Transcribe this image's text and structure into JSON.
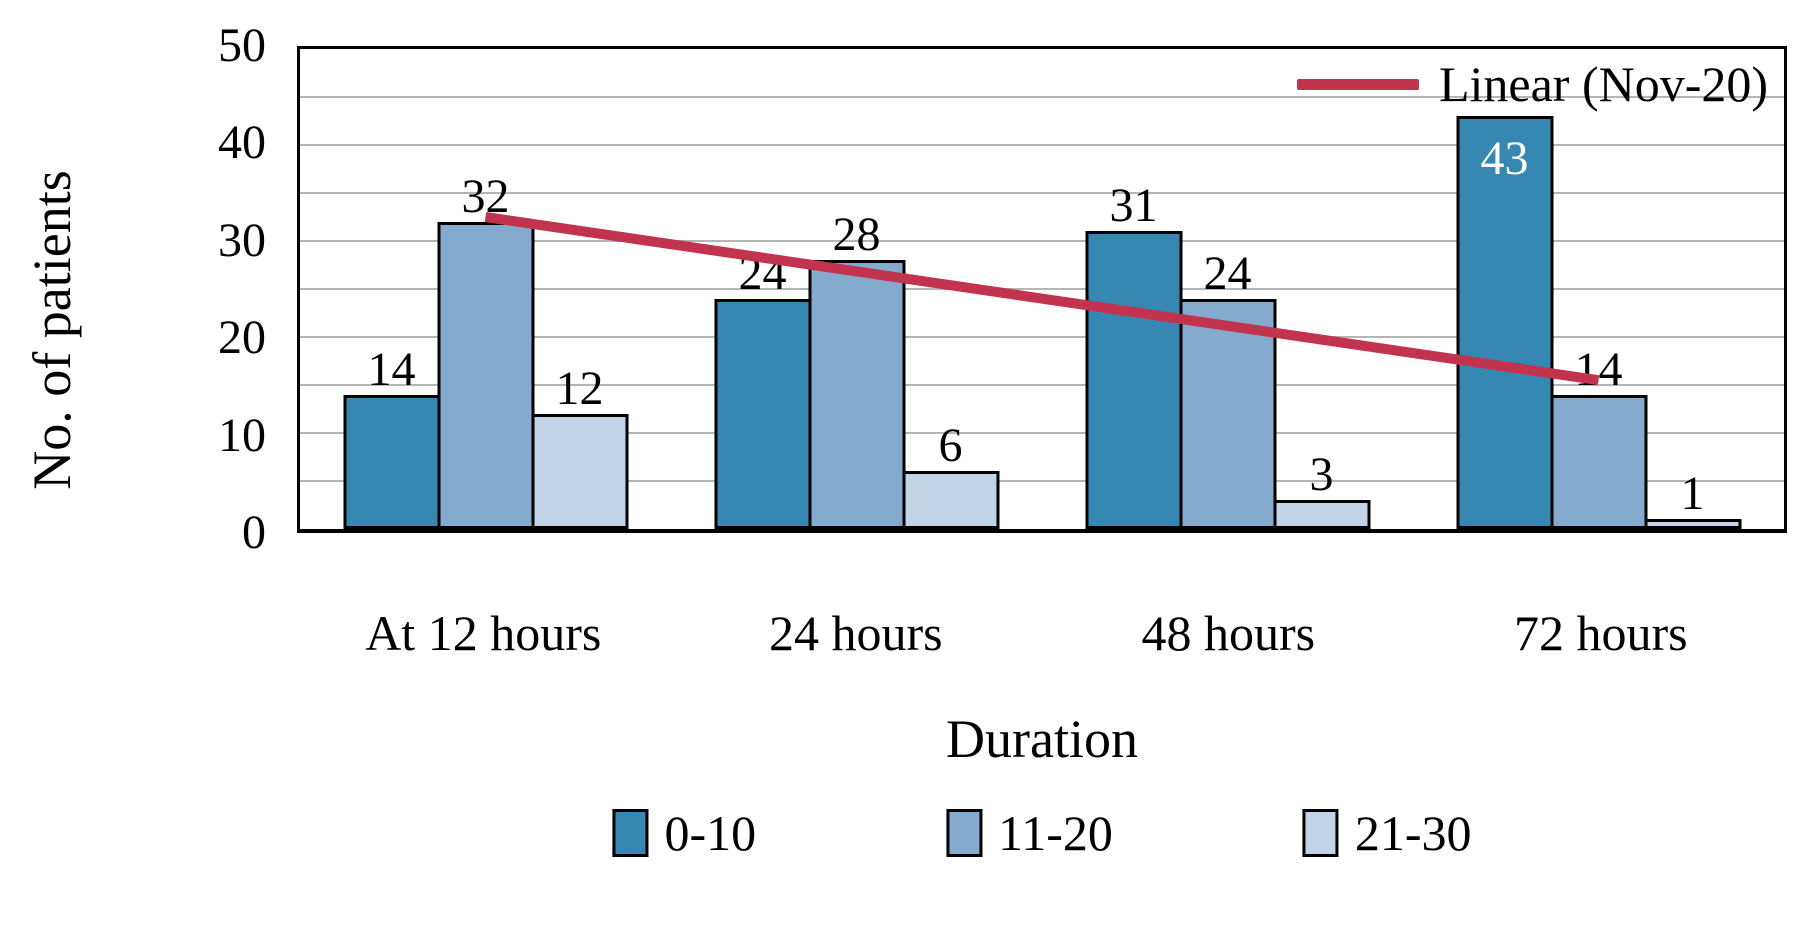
{
  "chart_data": {
    "type": "bar",
    "title": "",
    "categories": [
      "At 12 hours",
      "24 hours",
      "48 hours",
      "72 hours"
    ],
    "series": [
      {
        "name": "0-10",
        "color": "#3787b3",
        "values": [
          14,
          24,
          31,
          43
        ]
      },
      {
        "name": "11-20",
        "color": "#84abce",
        "values": [
          32,
          28,
          24,
          14
        ]
      },
      {
        "name": "21-30",
        "color": "#c0d3e7",
        "values": [
          12,
          6,
          3,
          1
        ]
      }
    ],
    "trendline": {
      "label": "Linear (Nov-20)",
      "color": "#c2334d",
      "start_x_frac": 0.125,
      "end_x_frac": 0.875,
      "start_value": 32.5,
      "end_value": 15.5
    },
    "xlabel": "Duration",
    "ylabel": "No. of patients",
    "ylim": [
      0,
      50
    ],
    "y_ticks": [
      "0",
      "10",
      "20",
      "30",
      "40",
      "50"
    ],
    "ytick_interval": 10,
    "gridline_interval": 5,
    "grid": true,
    "legend_position": "bottom",
    "inside_labels": [
      {
        "category": 3,
        "series": 0,
        "color": "#ffffff"
      }
    ],
    "bars_over_trendline": [
      {
        "category": 3,
        "series": 0
      }
    ]
  },
  "colors": {
    "background": "#ffffff",
    "gridline": "#b5b5b5",
    "axis": "#000000",
    "bar_border": "#000000",
    "text": "#000000"
  }
}
